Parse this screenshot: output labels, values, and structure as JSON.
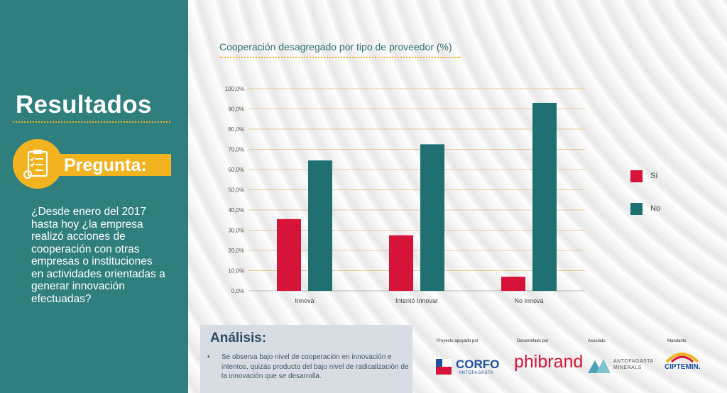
{
  "left_panel": {
    "title": "Resultados",
    "pregunta_label": "Pregunta:",
    "question": "¿Desde enero del 2017 hasta hoy ¿la empresa realizó acciones de cooperación con otras empresas o instituciones en actividades orientadas a generar innovación efectuadas?"
  },
  "chart_data": {
    "type": "bar",
    "title": "Cooperación desagregado por tipo de proveedor (%)",
    "categories": [
      "Innova",
      "Intentó Innovar",
      "No Innova"
    ],
    "series": [
      {
        "name": "Sí",
        "values": [
          35.5,
          27.5,
          7.0
        ],
        "color": "#d6143a"
      },
      {
        "name": "No",
        "values": [
          64.5,
          72.5,
          93.0
        ],
        "color": "#1f7070"
      }
    ],
    "ylim": [
      0,
      100
    ],
    "yticks": [
      "0,0%",
      "10,0%",
      "20,0%",
      "30,0%",
      "40,0%",
      "50,0%",
      "60,0%",
      "70,0%",
      "80,0%",
      "90,0%",
      "100,0%"
    ],
    "grid": true,
    "legend_position": "right"
  },
  "analysis": {
    "title": "Análisis:",
    "bullet": "•",
    "text": "Se observa bajo nivel de cooperación en innovación e intentos, quizás producto del bajo nivel de radicalización de la innovación que se desarrolla."
  },
  "logos": {
    "corfo_caption": "Proyecto apoyado por",
    "corfo_name": "CORFO",
    "corfo_sub": "ANTOFAGASTA",
    "phibrand_caption": "Desarrollado por",
    "phibrand_name": "phibrand",
    "antofagasta_caption": "Asociado",
    "antofagasta_name": "ANTOFAGASTA",
    "antofagasta_sub": "MINERALS",
    "ciptemin_caption": "Mandante",
    "ciptemin_name": "CIPTEMIN."
  },
  "colors": {
    "panel": "#2e7f7e",
    "accent": "#f2b320",
    "si": "#d6143a",
    "no": "#1f7070"
  }
}
